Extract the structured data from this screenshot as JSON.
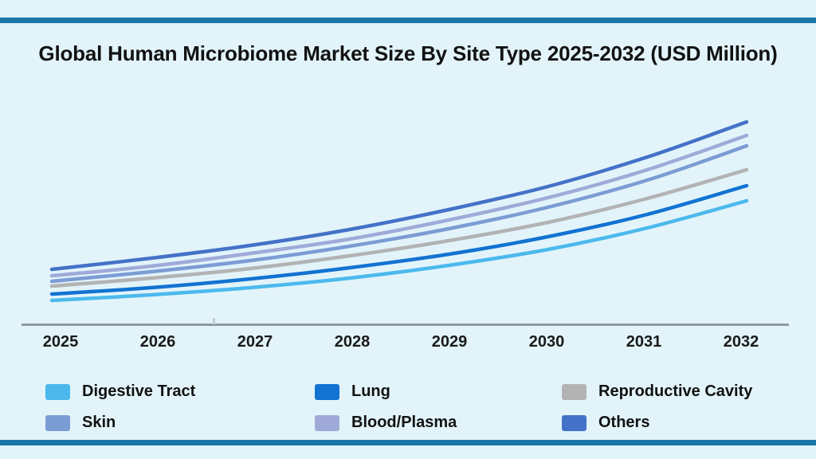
{
  "page": {
    "background_color": "#E2F4FA",
    "accent_bar_color": "#1B76A8",
    "axis_color": "#8E99A0",
    "text_color": "#121212"
  },
  "chart_data": {
    "type": "line",
    "title": "Global Human Microbiome Market Size By Site Type 2025-2032 (USD Million)",
    "x": [
      2025,
      2026,
      2027,
      2028,
      2029,
      2030,
      2031,
      2032
    ],
    "x_tick_labels": [
      "2025",
      "2026",
      "2027",
      "2028",
      "2029",
      "2030",
      "2031",
      "2032"
    ],
    "xlabel": "",
    "ylabel": "",
    "y_axis": "unlabeled (no ticks or gridlines shown); values are relative estimates in USD Million",
    "grid": false,
    "legend_position": "bottom",
    "series": [
      {
        "name": "Digestive Tract",
        "color": "#4CB9EC",
        "values": [
          230,
          300,
          390,
          510,
          670,
          870,
          1140,
          1480
        ]
      },
      {
        "name": "Lung",
        "color": "#1273D2",
        "values": [
          310,
          390,
          500,
          640,
          810,
          1030,
          1310,
          1670
        ]
      },
      {
        "name": "Reproductive Cavity",
        "color": "#B3B3B3",
        "values": [
          410,
          510,
          630,
          790,
          980,
          1210,
          1510,
          1870
        ]
      },
      {
        "name": "Skin",
        "color": "#7B9CD4",
        "values": [
          470,
          590,
          730,
          910,
          1130,
          1400,
          1740,
          2170
        ]
      },
      {
        "name": "Blood/Plasma",
        "color": "#A0AAD9",
        "values": [
          540,
          660,
          820,
          1000,
          1240,
          1520,
          1870,
          2300
        ]
      },
      {
        "name": "Others",
        "color": "#4472C8",
        "values": [
          620,
          760,
          920,
          1120,
          1370,
          1660,
          2030,
          2470
        ]
      }
    ]
  }
}
